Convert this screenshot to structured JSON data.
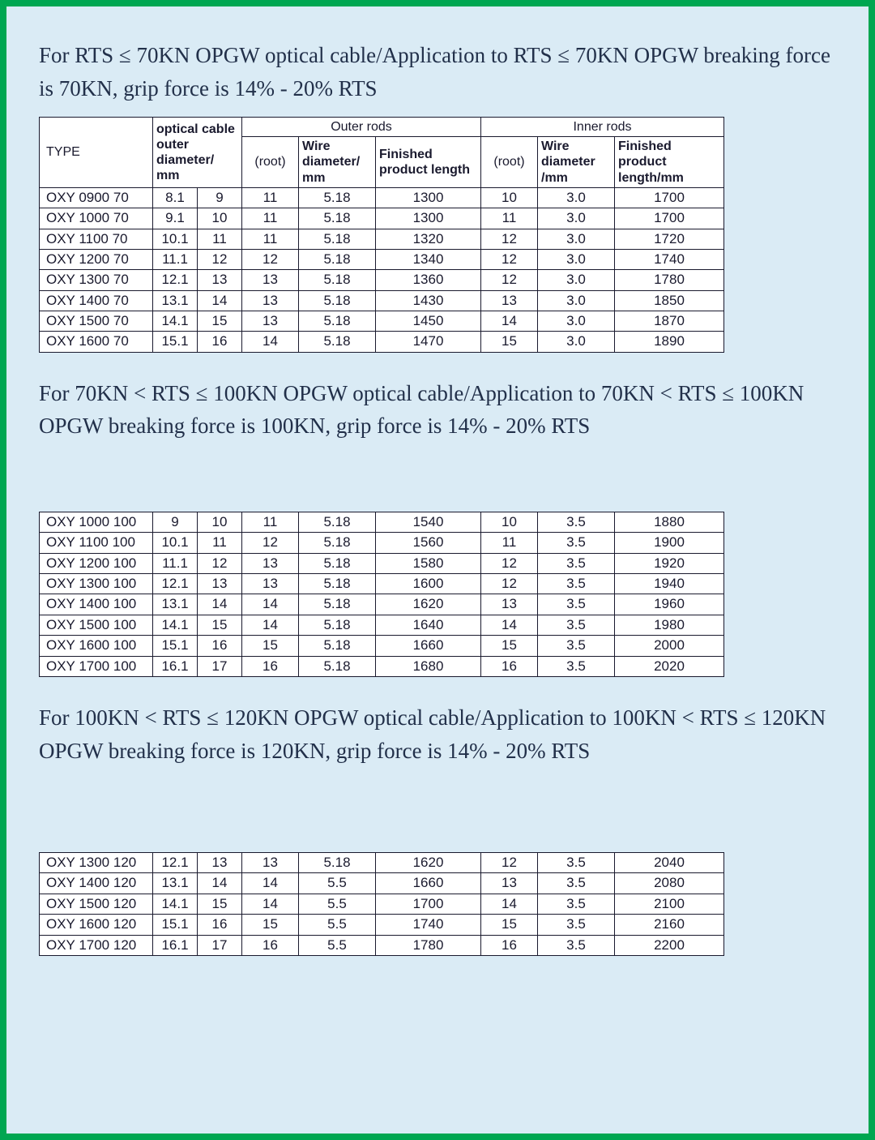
{
  "colors": {
    "frame_border": "#00a651",
    "page_bg": "#daebf5",
    "table_bg": "#ffffff",
    "border": "#1a1a2e",
    "text": "#1a1a2e",
    "title_text": "#22304a"
  },
  "typography": {
    "title_font": "Georgia, serif",
    "title_size_pt": 20,
    "table_font": "Arial, sans-serif",
    "table_size_pt": 13
  },
  "column_headers": {
    "type": "TYPE",
    "optical_diam": "optical cable outer diameter/ mm",
    "outer_rods": "Outer rods",
    "inner_rods": "Inner rods",
    "root": "(root)",
    "wire_diam_mm": "Wire diameter/ mm",
    "wire_diam_mm2": "Wire diameter /mm",
    "finished_len": "Finished product length",
    "finished_len_mm": "Finished product length/mm"
  },
  "sections": [
    {
      "title": "For RTS ≤ 70KN OPGW optical cable/Application to RTS ≤ 70KN OPGW breaking force is 70KN, grip force is 14% - 20% RTS",
      "show_header": true,
      "rows": [
        [
          "OXY 0900 70",
          "8.1",
          "9",
          "11",
          "5.18",
          "1300",
          "10",
          "3.0",
          "1700"
        ],
        [
          "OXY 1000 70",
          "9.1",
          "10",
          "11",
          "5.18",
          "1300",
          "11",
          "3.0",
          "1700"
        ],
        [
          "OXY 1100 70",
          "10.1",
          "11",
          "11",
          "5.18",
          "1320",
          "12",
          "3.0",
          "1720"
        ],
        [
          "OXY 1200 70",
          "11.1",
          "12",
          "12",
          "5.18",
          "1340",
          "12",
          "3.0",
          "1740"
        ],
        [
          "OXY 1300 70",
          "12.1",
          "13",
          "13",
          "5.18",
          "1360",
          "12",
          "3.0",
          "1780"
        ],
        [
          "OXY 1400 70",
          "13.1",
          "14",
          "13",
          "5.18",
          "1430",
          "13",
          "3.0",
          "1850"
        ],
        [
          "OXY 1500 70",
          "14.1",
          "15",
          "13",
          "5.18",
          "1450",
          "14",
          "3.0",
          "1870"
        ],
        [
          "OXY 1600 70",
          "15.1",
          "16",
          "14",
          "5.18",
          "1470",
          "15",
          "3.0",
          "1890"
        ]
      ]
    },
    {
      "title": "For 70KN  <  RTS ≤ 100KN OPGW optical cable/Application to 70KN  <  RTS ≤ 100KN OPGW breaking force is 100KN, grip force is 14% - 20% RTS",
      "show_header": false,
      "rows": [
        [
          "OXY 1000 100",
          "9",
          "10",
          "11",
          "5.18",
          "1540",
          "10",
          "3.5",
          "1880"
        ],
        [
          "OXY 1100 100",
          "10.1",
          "11",
          "12",
          "5.18",
          "1560",
          "11",
          "3.5",
          "1900"
        ],
        [
          "OXY 1200 100",
          "11.1",
          "12",
          "13",
          "5.18",
          "1580",
          "12",
          "3.5",
          "1920"
        ],
        [
          "OXY 1300 100",
          "12.1",
          "13",
          "13",
          "5.18",
          "1600",
          "12",
          "3.5",
          "1940"
        ],
        [
          "OXY 1400 100",
          "13.1",
          "14",
          "14",
          "5.18",
          "1620",
          "13",
          "3.5",
          "1960"
        ],
        [
          "OXY 1500 100",
          "14.1",
          "15",
          "14",
          "5.18",
          "1640",
          "14",
          "3.5",
          "1980"
        ],
        [
          "OXY 1600 100",
          "15.1",
          "16",
          "15",
          "5.18",
          "1660",
          "15",
          "3.5",
          "2000"
        ],
        [
          "OXY 1700 100",
          "16.1",
          "17",
          "16",
          "5.18",
          "1680",
          "16",
          "3.5",
          "2020"
        ]
      ]
    },
    {
      "title": "For 100KN  <  RTS ≤ 120KN OPGW optical cable/Application to 100KN  <  RTS ≤ 120KN OPGW breaking force is 120KN, grip force is 14% - 20% RTS",
      "show_header": false,
      "rows": [
        [
          "OXY 1300 120",
          "12.1",
          "13",
          "13",
          "5.18",
          "1620",
          "12",
          "3.5",
          "2040"
        ],
        [
          "OXY 1400 120",
          "13.1",
          "14",
          "14",
          "5.5",
          "1660",
          "13",
          "3.5",
          "2080"
        ],
        [
          "OXY 1500 120",
          "14.1",
          "15",
          "14",
          "5.5",
          "1700",
          "14",
          "3.5",
          "2100"
        ],
        [
          "OXY 1600 120",
          "15.1",
          "16",
          "15",
          "5.5",
          "1740",
          "15",
          "3.5",
          "2160"
        ],
        [
          "OXY 1700 120",
          "16.1",
          "17",
          "16",
          "5.5",
          "1780",
          "16",
          "3.5",
          "2200"
        ]
      ]
    }
  ]
}
